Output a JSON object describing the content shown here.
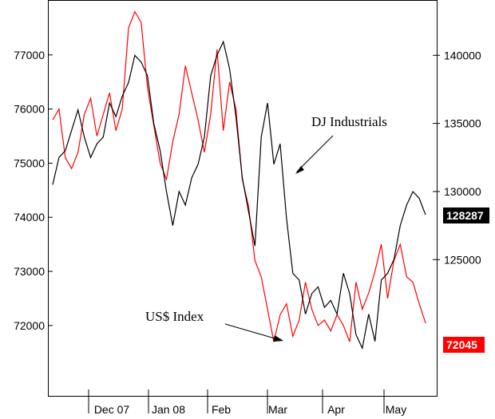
{
  "chart_data": {
    "type": "line",
    "title": "",
    "xlabel": "",
    "x_tick_labels": [
      "Dec 07",
      "Jan 08",
      "Feb",
      "Mar",
      "Apr",
      "May"
    ],
    "left_axis": {
      "ylim": [
        70700,
        78000
      ],
      "ticks": [
        72000,
        73000,
        74000,
        75000,
        76000,
        77000
      ]
    },
    "right_axis": {
      "ylim": [
        115000,
        144000
      ],
      "ticks": [
        125000,
        130000,
        135000,
        140000
      ]
    },
    "grid": false,
    "series": [
      {
        "name": "US$ Index",
        "axis": "left",
        "color": "#ff0000",
        "current_value_label": "72045",
        "values": [
          75800,
          76000,
          75100,
          74900,
          75200,
          75900,
          76200,
          75500,
          75900,
          76300,
          75600,
          76000,
          77500,
          77800,
          77600,
          76400,
          75700,
          75000,
          74700,
          75400,
          75900,
          76800,
          76300,
          75800,
          75200,
          75900,
          77100,
          75600,
          76500,
          76000,
          74700,
          74200,
          73200,
          72900,
          72300,
          71700,
          72200,
          72400,
          71800,
          72100,
          72800,
          72300,
          72000,
          72100,
          71900,
          72200,
          72000,
          71700,
          72800,
          72300,
          72600,
          73000,
          73500,
          72500,
          73200,
          73500,
          72900,
          72800,
          72400,
          72045
        ]
      },
      {
        "name": "DJ Industrials",
        "axis": "right",
        "color": "#000000",
        "current_value_label": "128287",
        "values": [
          130500,
          132500,
          133000,
          134500,
          136000,
          134000,
          132500,
          133500,
          134000,
          136500,
          135500,
          137000,
          138000,
          140000,
          139500,
          138500,
          135000,
          133000,
          130000,
          127500,
          130000,
          129000,
          131000,
          132000,
          134000,
          138500,
          140000,
          141000,
          139000,
          135500,
          131000,
          128500,
          126000,
          134000,
          136500,
          132000,
          133500,
          128000,
          124000,
          123500,
          121000,
          122500,
          123000,
          121500,
          122000,
          121000,
          124000,
          122500,
          119500,
          118500,
          121000,
          119000,
          123500,
          124000,
          125000,
          127500,
          129000,
          130000,
          129500,
          128287
        ]
      }
    ],
    "annotations": [
      {
        "text": "DJ Industrials",
        "series": "DJ Industrials"
      },
      {
        "text": "US$ Index",
        "series": "US$ Index"
      }
    ]
  }
}
